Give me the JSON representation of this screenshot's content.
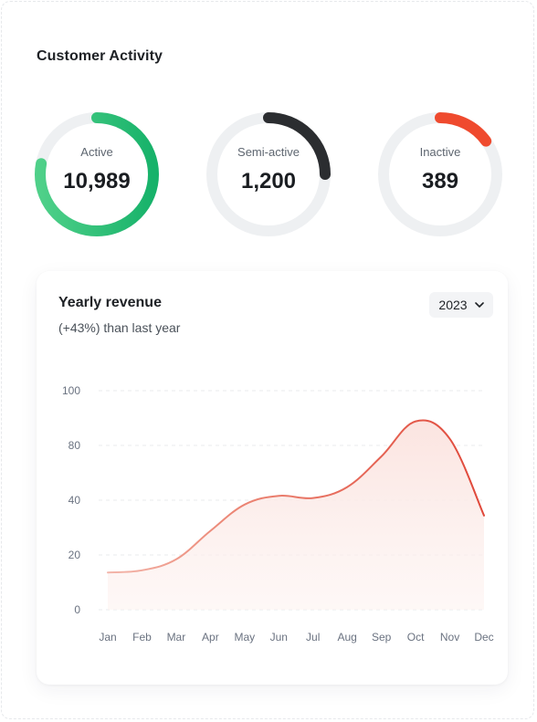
{
  "section_title": "Customer Activity",
  "stats": [
    {
      "label": "Active",
      "value": "10,989",
      "fraction": 0.78,
      "start": 0,
      "color": "#17b26a",
      "color_light": "#4fd089"
    },
    {
      "label": "Semi-active",
      "value": "1,200",
      "fraction": 0.25,
      "start": 0,
      "color": "#2b2d30"
    },
    {
      "label": "Inactive",
      "value": "389",
      "fraction": 0.15,
      "start": 0,
      "color": "#ef4a2e"
    }
  ],
  "ring_track_color": "#eef0f2",
  "revenue": {
    "title": "Yearly revenue",
    "subtitle": "(+43%) than last year",
    "year": "2023"
  },
  "chart_data": {
    "type": "area",
    "categories": [
      "Jan",
      "Feb",
      "Mar",
      "Apr",
      "May",
      "Jun",
      "Jul",
      "Aug",
      "Sep",
      "Oct",
      "Nov",
      "Dec"
    ],
    "y_ticks": [
      "100",
      "80",
      "40",
      "20",
      "0"
    ],
    "series": [
      {
        "values": [
          17,
          18,
          23,
          36,
          48,
          52,
          51,
          56,
          70,
          86,
          78,
          43
        ],
        "color": "#e0483a"
      }
    ],
    "ylim": [
      0,
      100
    ],
    "grid": true
  }
}
